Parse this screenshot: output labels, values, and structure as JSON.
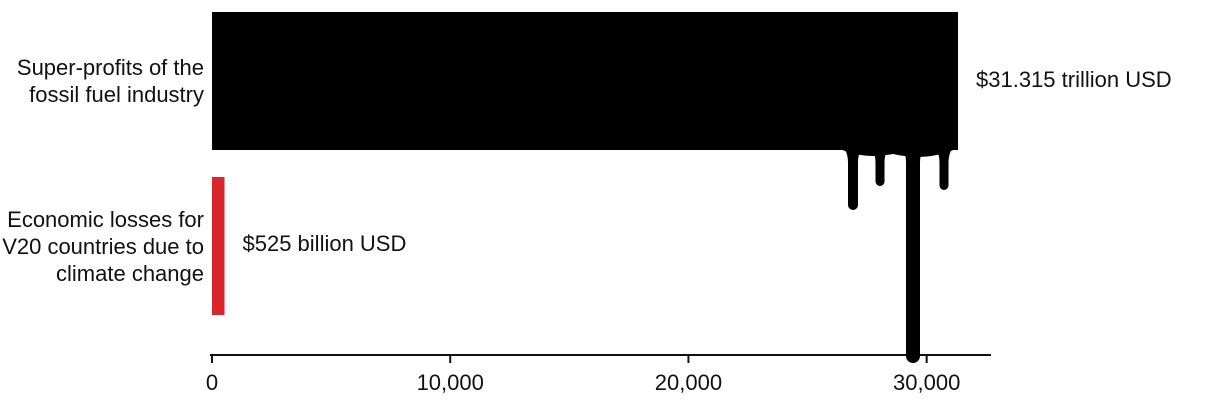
{
  "chart_data": {
    "type": "barh",
    "categories": [
      "Super-profits of the fossil fuel industry",
      "Economic losses for V20 countries due to climate change"
    ],
    "values": [
      31315,
      525
    ],
    "value_labels": [
      "$31.315 trillion USD",
      "$525 billion USD"
    ],
    "colors": [
      "#000000",
      "#d9262e"
    ],
    "xlim": [
      0,
      32700
    ],
    "xticks": [
      0,
      {
        "value": 10000,
        "label": "10,000"
      },
      {
        "value": 20000,
        "label": "20,000"
      },
      {
        "value": 30000,
        "label": "30,000"
      }
    ]
  }
}
